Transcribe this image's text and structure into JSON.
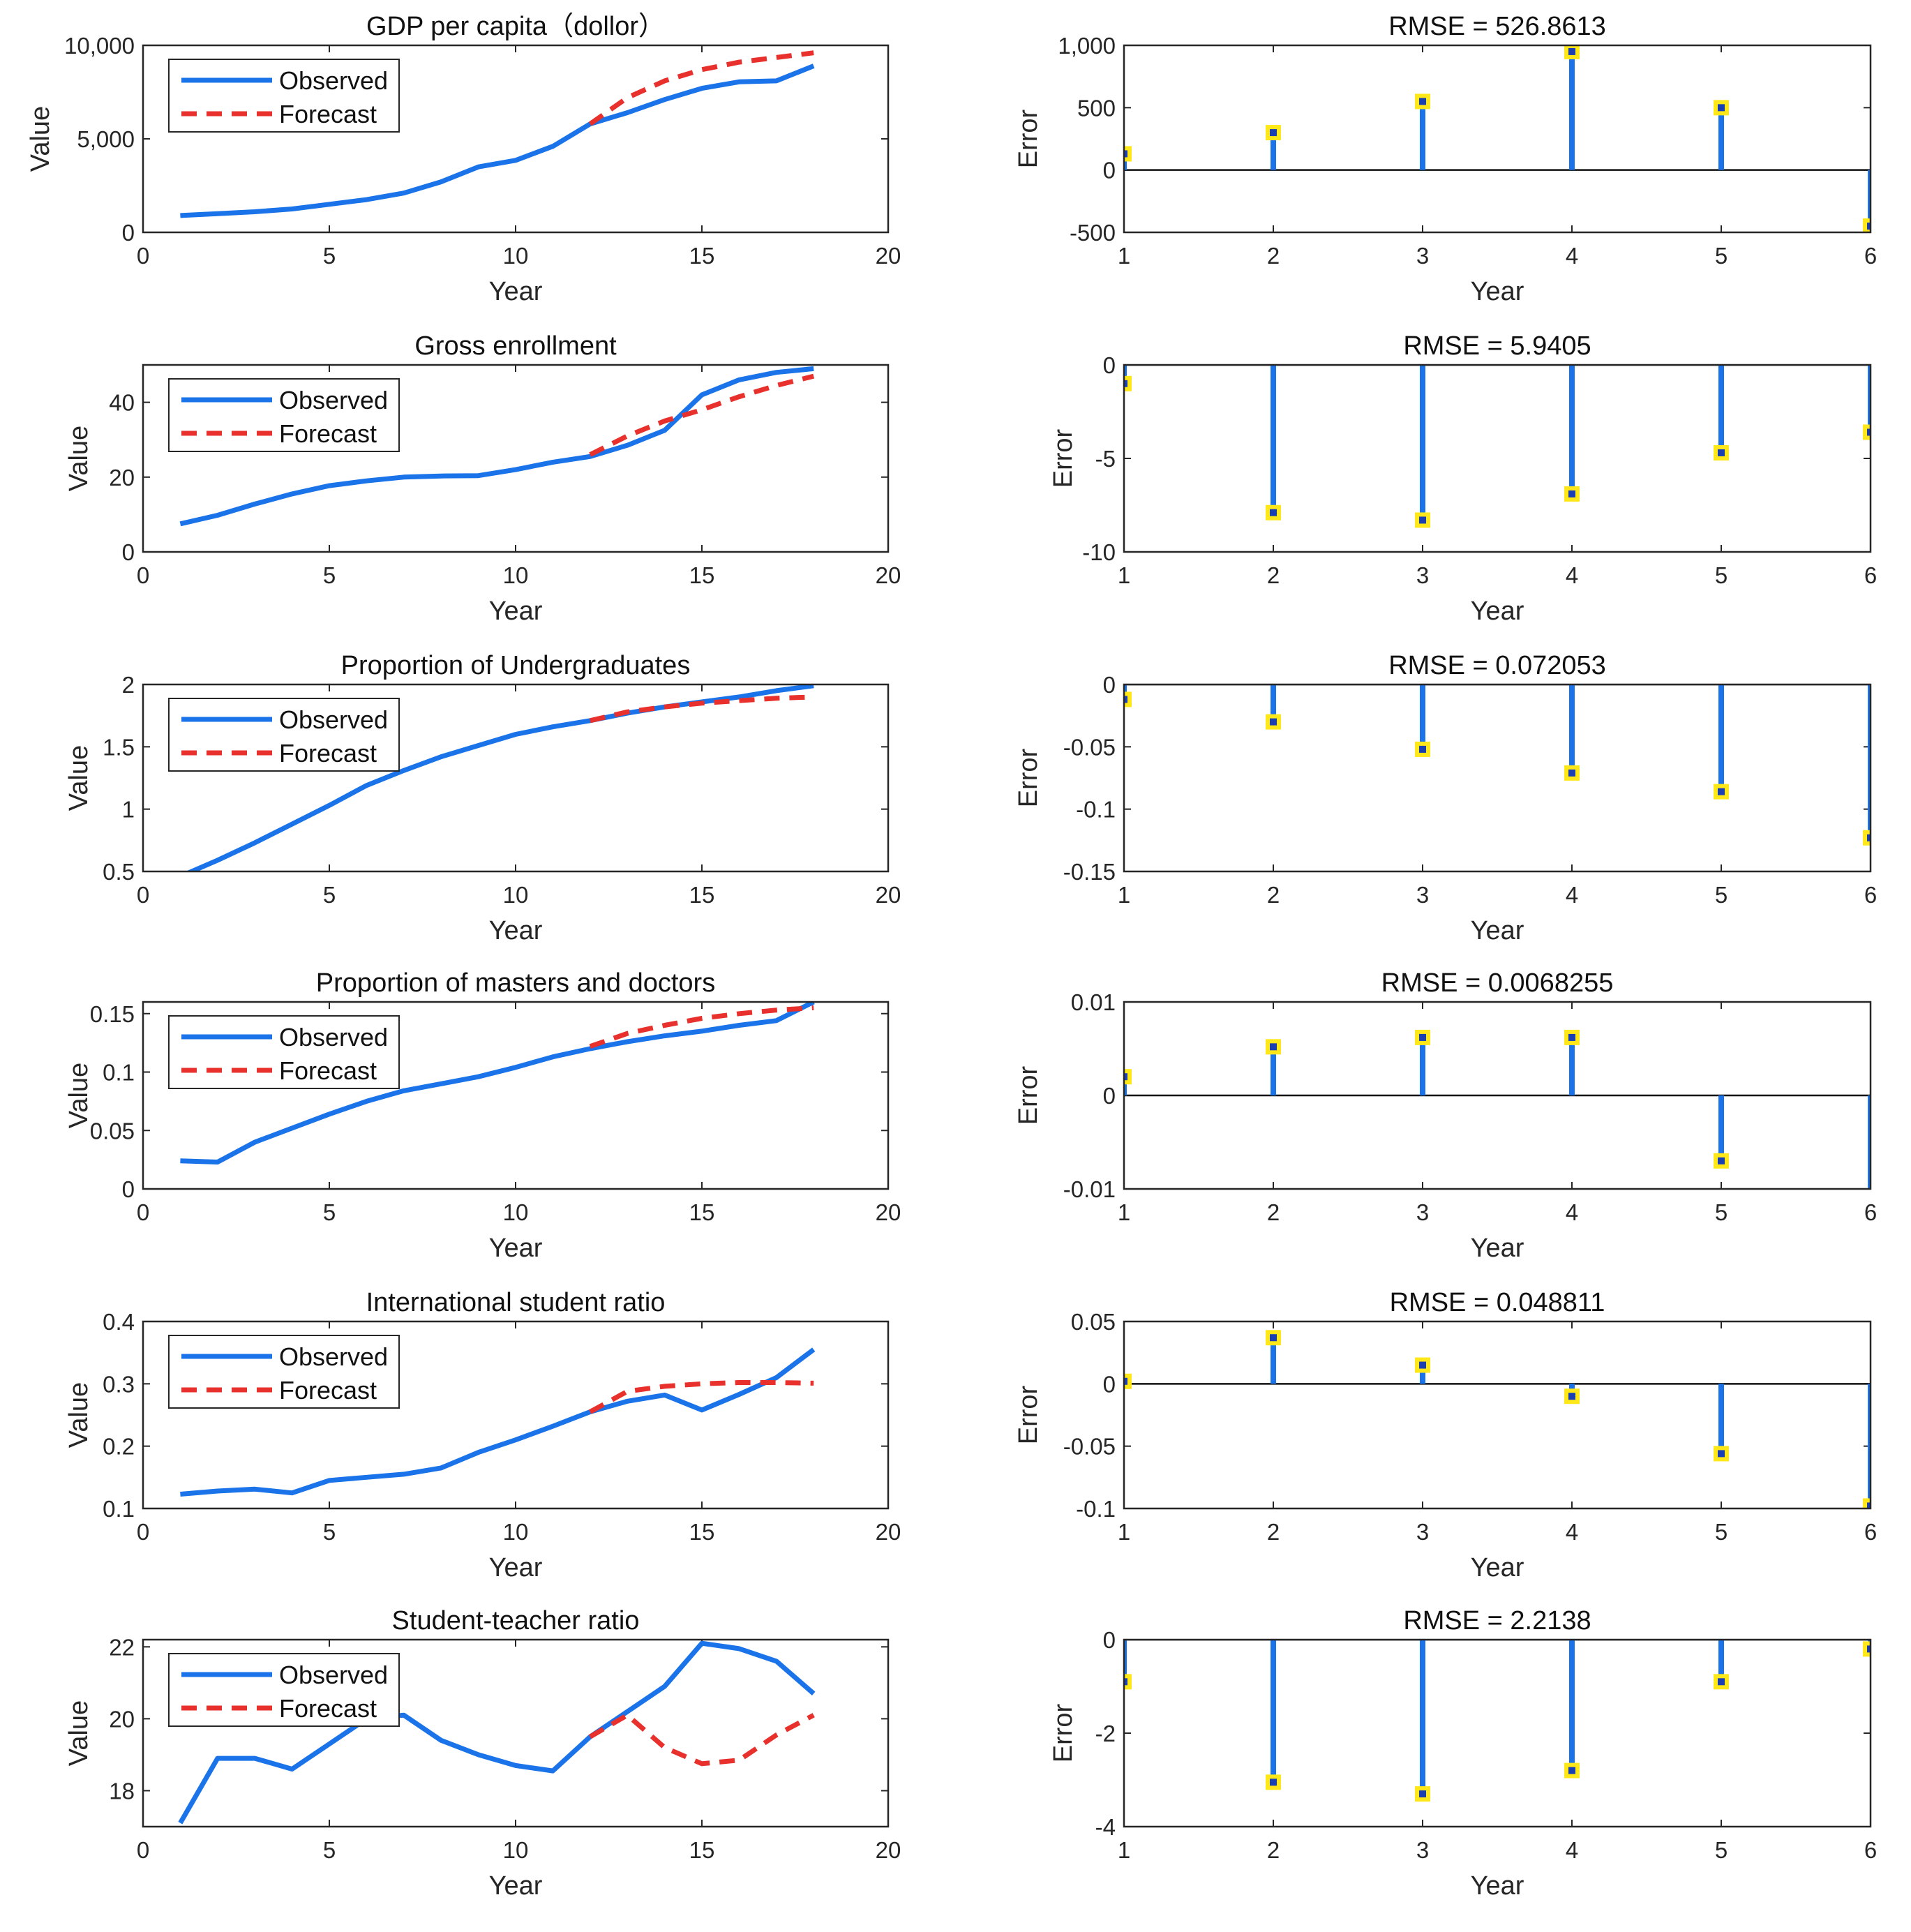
{
  "chart_data": [
    {
      "type": "line",
      "title": "GDP per capita（dollor）",
      "xlabel": "Year",
      "ylabel": "Value",
      "xlim": [
        0,
        20
      ],
      "ylim": [
        0,
        10000
      ],
      "xticks": [
        0,
        5,
        10,
        15,
        20
      ],
      "yticks": [
        0,
        5000,
        10000
      ],
      "xtick_labels": [
        "0",
        "5",
        "10",
        "15",
        "20"
      ],
      "ytick_labels": [
        "0",
        "5,000",
        "10,000"
      ],
      "legend": {
        "position": "top-left",
        "entries": [
          "Observed",
          "Forecast"
        ]
      },
      "series": [
        {
          "name": "Observed",
          "color": "#1a73e8",
          "style": "solid",
          "x": [
            1,
            2,
            3,
            4,
            5,
            6,
            7,
            8,
            9,
            10,
            11,
            12,
            13,
            14,
            15,
            16,
            17,
            18
          ],
          "y": [
            900,
            1000,
            1100,
            1250,
            1500,
            1750,
            2100,
            2700,
            3500,
            3850,
            4600,
            5800,
            6400,
            7100,
            7700,
            8050,
            8100,
            8900
          ]
        },
        {
          "name": "Forecast",
          "color": "#e8302c",
          "style": "dashed",
          "x": [
            12,
            13,
            14,
            15,
            16,
            17,
            18
          ],
          "y": [
            5800,
            7200,
            8100,
            8700,
            9100,
            9350,
            9600
          ]
        }
      ]
    },
    {
      "type": "stem",
      "title": "RMSE = 526.8613",
      "xlabel": "Year",
      "ylabel": "Error",
      "xlim": [
        1,
        6
      ],
      "ylim": [
        -500,
        1000
      ],
      "xticks": [
        1,
        2,
        3,
        4,
        5,
        6
      ],
      "yticks": [
        -500,
        0,
        500,
        1000
      ],
      "xtick_labels": [
        "1",
        "2",
        "3",
        "4",
        "5",
        "6"
      ],
      "ytick_labels": [
        "-500",
        "0",
        "500",
        "1,000"
      ],
      "x": [
        1,
        2,
        3,
        4,
        5,
        6
      ],
      "values": [
        130,
        300,
        550,
        950,
        500,
        -450
      ]
    },
    {
      "type": "line",
      "title": "Gross enrollment",
      "xlabel": "Year",
      "ylabel": "Value",
      "xlim": [
        0,
        20
      ],
      "ylim": [
        0,
        50
      ],
      "xticks": [
        0,
        5,
        10,
        15,
        20
      ],
      "yticks": [
        0,
        20,
        40
      ],
      "xtick_labels": [
        "0",
        "5",
        "10",
        "15",
        "20"
      ],
      "ytick_labels": [
        "0",
        "20",
        "40"
      ],
      "legend": {
        "position": "top-left",
        "entries": [
          "Observed",
          "Forecast"
        ]
      },
      "series": [
        {
          "name": "Observed",
          "color": "#1a73e8",
          "style": "solid",
          "x": [
            1,
            2,
            3,
            4,
            5,
            6,
            7,
            8,
            9,
            10,
            11,
            12,
            13,
            14,
            15,
            16,
            17,
            18
          ],
          "y": [
            7.5,
            9.8,
            12.8,
            15.5,
            17.7,
            19,
            20,
            20.3,
            20.4,
            22,
            24,
            25.5,
            28.5,
            32.5,
            42,
            46,
            48,
            49
          ]
        },
        {
          "name": "Forecast",
          "color": "#e8302c",
          "style": "dashed",
          "x": [
            12,
            13,
            14,
            15,
            16,
            17,
            18
          ],
          "y": [
            26,
            31,
            35,
            38,
            41.5,
            44.5,
            47
          ]
        }
      ]
    },
    {
      "type": "stem",
      "title": "RMSE = 5.9405",
      "xlabel": "Year",
      "ylabel": "Error",
      "xlim": [
        1,
        6
      ],
      "ylim": [
        -10,
        0
      ],
      "xticks": [
        1,
        2,
        3,
        4,
        5,
        6
      ],
      "yticks": [
        -10,
        -5,
        0
      ],
      "xtick_labels": [
        "1",
        "2",
        "3",
        "4",
        "5",
        "6"
      ],
      "ytick_labels": [
        "-10",
        "-5",
        "0"
      ],
      "x": [
        1,
        2,
        3,
        4,
        5,
        6
      ],
      "values": [
        -1,
        -7.9,
        -8.3,
        -6.9,
        -4.7,
        -3.6
      ]
    },
    {
      "type": "line",
      "title": "Proportion of Undergraduates",
      "xlabel": "Year",
      "ylabel": "Value",
      "xlim": [
        0,
        20
      ],
      "ylim": [
        0.5,
        2
      ],
      "xticks": [
        0,
        5,
        10,
        15,
        20
      ],
      "yticks": [
        0.5,
        1,
        1.5,
        2
      ],
      "xtick_labels": [
        "0",
        "5",
        "10",
        "15",
        "20"
      ],
      "ytick_labels": [
        "0.5",
        "1",
        "1.5",
        "2"
      ],
      "legend": {
        "position": "top-left",
        "entries": [
          "Observed",
          "Forecast"
        ]
      },
      "series": [
        {
          "name": "Observed",
          "color": "#1a73e8",
          "style": "solid",
          "x": [
            1,
            2,
            3,
            4,
            5,
            6,
            7,
            8,
            9,
            10,
            11,
            12,
            13,
            14,
            15,
            16,
            17,
            18
          ],
          "y": [
            0.46,
            0.59,
            0.73,
            0.88,
            1.03,
            1.19,
            1.31,
            1.42,
            1.51,
            1.6,
            1.66,
            1.71,
            1.77,
            1.82,
            1.86,
            1.9,
            1.95,
            1.99
          ]
        },
        {
          "name": "Forecast",
          "color": "#e8302c",
          "style": "dashed",
          "x": [
            12,
            13,
            14,
            15,
            16,
            17,
            18
          ],
          "y": [
            1.71,
            1.78,
            1.82,
            1.85,
            1.87,
            1.89,
            1.9
          ]
        }
      ]
    },
    {
      "type": "stem",
      "title": "RMSE = 0.072053",
      "xlabel": "Year",
      "ylabel": "Error",
      "xlim": [
        1,
        6
      ],
      "ylim": [
        -0.15,
        0
      ],
      "xticks": [
        1,
        2,
        3,
        4,
        5,
        6
      ],
      "yticks": [
        -0.15,
        -0.1,
        -0.05,
        0
      ],
      "xtick_labels": [
        "1",
        "2",
        "3",
        "4",
        "5",
        "6"
      ],
      "ytick_labels": [
        "-0.15",
        "-0.1",
        "-0.05",
        "0"
      ],
      "x": [
        1,
        2,
        3,
        4,
        5,
        6
      ],
      "values": [
        -0.012,
        -0.03,
        -0.052,
        -0.071,
        -0.086,
        -0.123
      ]
    },
    {
      "type": "line",
      "title": "Proportion of masters and doctors",
      "xlabel": "Year",
      "ylabel": "Value",
      "xlim": [
        0,
        20
      ],
      "ylim": [
        0,
        0.16
      ],
      "xticks": [
        0,
        5,
        10,
        15,
        20
      ],
      "yticks": [
        0,
        0.05,
        0.1,
        0.15
      ],
      "xtick_labels": [
        "0",
        "5",
        "10",
        "15",
        "20"
      ],
      "ytick_labels": [
        "0",
        "0.05",
        "0.1",
        "0.15"
      ],
      "legend": {
        "position": "top-left",
        "entries": [
          "Observed",
          "Forecast"
        ]
      },
      "series": [
        {
          "name": "Observed",
          "color": "#1a73e8",
          "style": "solid",
          "x": [
            1,
            2,
            3,
            4,
            5,
            6,
            7,
            8,
            9,
            10,
            11,
            12,
            13,
            14,
            15,
            16,
            17,
            18
          ],
          "y": [
            0.024,
            0.023,
            0.04,
            0.052,
            0.064,
            0.075,
            0.084,
            0.09,
            0.096,
            0.104,
            0.113,
            0.12,
            0.126,
            0.131,
            0.135,
            0.14,
            0.144,
            0.16
          ]
        },
        {
          "name": "Forecast",
          "color": "#e8302c",
          "style": "dashed",
          "x": [
            12,
            13,
            14,
            15,
            16,
            17,
            18
          ],
          "y": [
            0.122,
            0.133,
            0.14,
            0.146,
            0.15,
            0.153,
            0.155
          ]
        }
      ]
    },
    {
      "type": "stem",
      "title": "RMSE = 0.0068255",
      "xlabel": "Year",
      "ylabel": "Error",
      "xlim": [
        1,
        6
      ],
      "ylim": [
        -0.01,
        0.01
      ],
      "xticks": [
        1,
        2,
        3,
        4,
        5,
        6
      ],
      "yticks": [
        -0.01,
        0,
        0.01
      ],
      "xtick_labels": [
        "1",
        "2",
        "3",
        "4",
        "5",
        "6"
      ],
      "ytick_labels": [
        "-0.01",
        "0",
        "0.01"
      ],
      "x": [
        1,
        2,
        3,
        4,
        5,
        6
      ],
      "values": [
        0.002,
        0.0052,
        0.0062,
        0.0062,
        -0.007,
        -0.0108
      ]
    },
    {
      "type": "line",
      "title": "International student ratio",
      "xlabel": "Year",
      "ylabel": "Value",
      "xlim": [
        0,
        20
      ],
      "ylim": [
        0.1,
        0.4
      ],
      "xticks": [
        0,
        5,
        10,
        15,
        20
      ],
      "yticks": [
        0.1,
        0.2,
        0.3,
        0.4
      ],
      "xtick_labels": [
        "0",
        "5",
        "10",
        "15",
        "20"
      ],
      "ytick_labels": [
        "0.1",
        "0.2",
        "0.3",
        "0.4"
      ],
      "legend": {
        "position": "top-left",
        "entries": [
          "Observed",
          "Forecast"
        ]
      },
      "series": [
        {
          "name": "Observed",
          "color": "#1a73e8",
          "style": "solid",
          "x": [
            1,
            2,
            3,
            4,
            5,
            6,
            7,
            8,
            9,
            10,
            11,
            12,
            13,
            14,
            15,
            16,
            17,
            18
          ],
          "y": [
            0.123,
            0.128,
            0.131,
            0.125,
            0.145,
            0.15,
            0.155,
            0.165,
            0.19,
            0.21,
            0.232,
            0.255,
            0.272,
            0.282,
            0.258,
            0.283,
            0.31,
            0.355
          ]
        },
        {
          "name": "Forecast",
          "color": "#e8302c",
          "style": "dashed",
          "x": [
            12,
            13,
            14,
            15,
            16,
            17,
            18
          ],
          "y": [
            0.255,
            0.288,
            0.296,
            0.3,
            0.302,
            0.302,
            0.301
          ]
        }
      ]
    },
    {
      "type": "stem",
      "title": "RMSE = 0.048811",
      "xlabel": "Year",
      "ylabel": "Error",
      "xlim": [
        1,
        6
      ],
      "ylim": [
        -0.1,
        0.05
      ],
      "xticks": [
        1,
        2,
        3,
        4,
        5,
        6
      ],
      "yticks": [
        -0.1,
        -0.05,
        0,
        0.05
      ],
      "xtick_labels": [
        "1",
        "2",
        "3",
        "4",
        "5",
        "6"
      ],
      "ytick_labels": [
        "-0.1",
        "-0.05",
        "0",
        "0.05"
      ],
      "x": [
        1,
        2,
        3,
        4,
        5,
        6
      ],
      "values": [
        0.002,
        0.037,
        0.015,
        -0.01,
        -0.056,
        -0.098
      ]
    },
    {
      "type": "line",
      "title": "Student-teacher ratio",
      "xlabel": "Year",
      "ylabel": "Value",
      "xlim": [
        0,
        20
      ],
      "ylim": [
        17,
        22.2
      ],
      "xticks": [
        0,
        5,
        10,
        15,
        20
      ],
      "yticks": [
        18,
        20,
        22
      ],
      "xtick_labels": [
        "0",
        "5",
        "10",
        "15",
        "20"
      ],
      "ytick_labels": [
        "18",
        "20",
        "22"
      ],
      "legend": {
        "position": "top-left",
        "entries": [
          "Observed",
          "Forecast"
        ]
      },
      "series": [
        {
          "name": "Observed",
          "color": "#1a73e8",
          "style": "solid",
          "x": [
            1,
            2,
            3,
            4,
            5,
            6,
            7,
            8,
            9,
            10,
            11,
            12,
            13,
            14,
            15,
            16,
            17,
            18
          ],
          "y": [
            17.1,
            18.9,
            18.9,
            18.6,
            19.3,
            20,
            20.1,
            19.4,
            19,
            18.7,
            18.55,
            19.5,
            20.2,
            20.9,
            22.1,
            21.95,
            21.6,
            20.7
          ]
        },
        {
          "name": "Forecast",
          "color": "#e8302c",
          "style": "dashed",
          "x": [
            12,
            13,
            14,
            15,
            16,
            17,
            18
          ],
          "y": [
            19.5,
            20.1,
            19.2,
            18.75,
            18.85,
            19.55,
            20.1
          ]
        }
      ]
    },
    {
      "type": "stem",
      "title": "RMSE = 2.2138",
      "xlabel": "Year",
      "ylabel": "Error",
      "xlim": [
        1,
        6
      ],
      "ylim": [
        -4,
        0
      ],
      "xticks": [
        1,
        2,
        3,
        4,
        5,
        6
      ],
      "yticks": [
        -4,
        -2,
        0
      ],
      "xtick_labels": [
        "1",
        "2",
        "3",
        "4",
        "5",
        "6"
      ],
      "ytick_labels": [
        "-4",
        "-2",
        "0"
      ],
      "x": [
        1,
        2,
        3,
        4,
        5,
        6
      ],
      "values": [
        -0.9,
        -3.05,
        -3.3,
        -2.8,
        -0.9,
        -0.2
      ]
    }
  ]
}
